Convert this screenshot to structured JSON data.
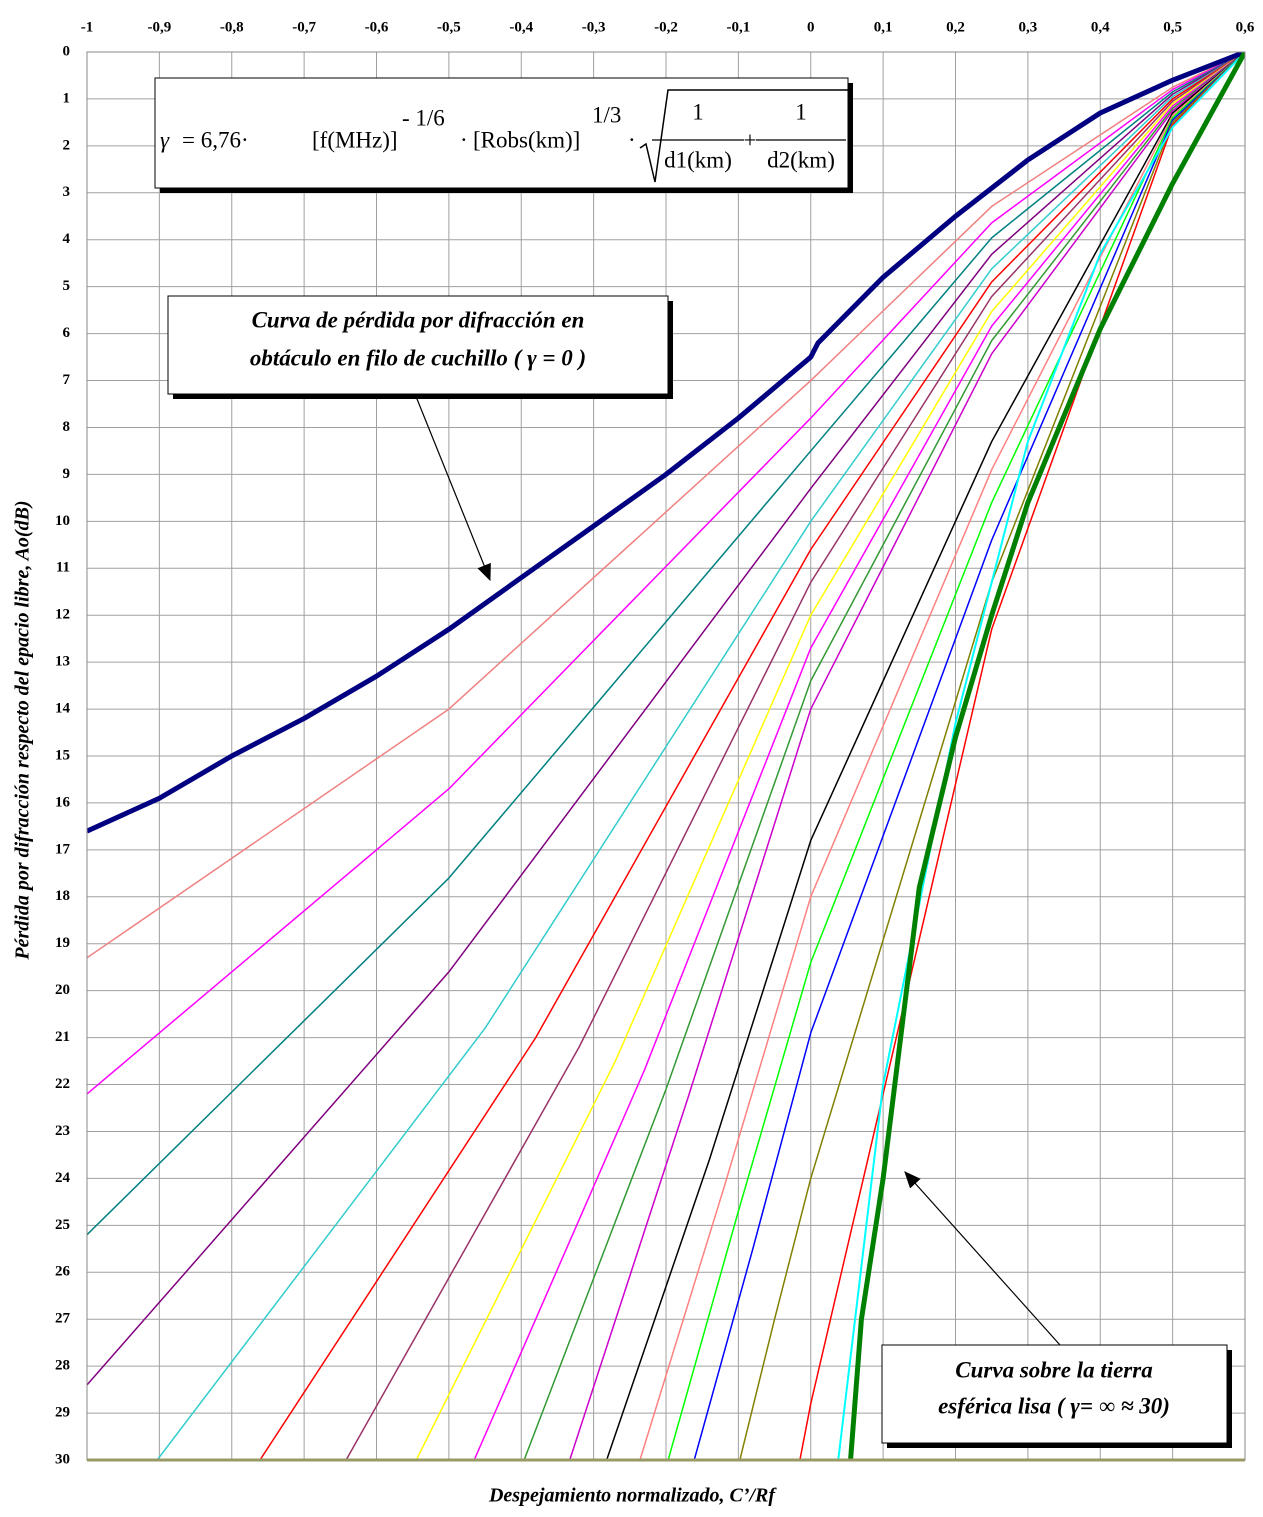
{
  "chart_data": {
    "type": "line",
    "x_label": "Despejamiento normalizado, C’/Rf",
    "y_label": "Pérdida por difracción respecto del epacio libre, Ao(dB)",
    "xlim": [
      -1,
      0.6
    ],
    "ylim": [
      0,
      30
    ],
    "y_reversed": true,
    "grid": true,
    "xticks": [
      -1,
      {
        "value": -0.9,
        "label": "-0,9"
      },
      {
        "value": -0.8,
        "label": "-0,8"
      },
      {
        "value": -0.7,
        "label": "-0,7"
      },
      {
        "value": -0.6,
        "label": "-0,6"
      },
      {
        "value": -0.5,
        "label": "-0,5"
      },
      {
        "value": -0.4,
        "label": "-0,4"
      },
      {
        "value": -0.3,
        "label": "-0,3"
      },
      {
        "value": -0.2,
        "label": "-0,2"
      },
      {
        "value": -0.1,
        "label": "-0,1"
      },
      0,
      {
        "value": 0.1,
        "label": "0,1"
      },
      {
        "value": 0.2,
        "label": "0,2"
      },
      {
        "value": 0.3,
        "label": "0,3"
      },
      {
        "value": 0.4,
        "label": "0,4"
      },
      {
        "value": 0.5,
        "label": "0,5"
      },
      {
        "value": 0.6,
        "label": "0,6"
      }
    ],
    "yticks": [
      0,
      1,
      2,
      3,
      4,
      5,
      6,
      7,
      8,
      9,
      10,
      11,
      12,
      13,
      14,
      15,
      16,
      17,
      18,
      19,
      20,
      21,
      22,
      23,
      24,
      25,
      26,
      27,
      28,
      29,
      30
    ],
    "series": [
      {
        "color": "#f08080",
        "width": 1.5,
        "x": [
          -1,
          -0.5,
          0,
          0.25,
          0.5,
          0.6
        ],
        "values": [
          19.3,
          14.0,
          7.0,
          3.29,
          0.75,
          0
        ]
      },
      {
        "color": "#ff00ff",
        "width": 1.5,
        "x": [
          -1,
          -0.5,
          0,
          0.25,
          0.5,
          0.6
        ],
        "values": [
          22.2,
          15.7,
          7.8,
          3.64,
          0.8,
          0
        ]
      },
      {
        "color": "#008080",
        "width": 1.5,
        "x": [
          -1,
          -0.5,
          0,
          0.25,
          0.5,
          0.6
        ],
        "values": [
          25.2,
          17.6,
          8.5,
          3.96,
          0.85,
          0
        ]
      },
      {
        "color": "#800080",
        "width": 1.5,
        "x": [
          -1,
          -0.5,
          0,
          0.25,
          0.5,
          0.6
        ],
        "values": [
          28.4,
          19.6,
          9.3,
          4.31,
          0.9,
          0
        ]
      },
      {
        "color": "#33cccc",
        "width": 1.5,
        "x": [
          -0.903,
          -0.45,
          0,
          0.25,
          0.5,
          0.6
        ],
        "values": [
          30,
          20.8,
          10.0,
          4.62,
          0.95,
          0
        ]
      },
      {
        "color": "#ff0000",
        "width": 1.5,
        "x": [
          -0.761,
          -0.38,
          0,
          0.25,
          0.5,
          0.6
        ],
        "values": [
          30,
          21.0,
          10.6,
          4.9,
          1.0,
          0
        ]
      },
      {
        "color": "#993366",
        "width": 1.5,
        "x": [
          -0.642,
          -0.32,
          0,
          0.25,
          0.5,
          0.6
        ],
        "values": [
          30,
          21.2,
          11.3,
          5.21,
          1.05,
          0
        ]
      },
      {
        "color": "#ffff00",
        "width": 1.5,
        "x": [
          -0.545,
          -0.27,
          0,
          0.25,
          0.5,
          0.6
        ],
        "values": [
          30,
          21.5,
          12.0,
          5.53,
          1.1,
          0
        ]
      },
      {
        "color": "#ff00ff",
        "width": 1.5,
        "x": [
          -0.465,
          -0.23,
          0,
          0.25,
          0.5,
          0.6
        ],
        "values": [
          30,
          21.7,
          12.7,
          5.84,
          1.15,
          0
        ]
      },
      {
        "color": "#339933",
        "width": 1.5,
        "x": [
          -0.396,
          -0.2,
          0,
          0.25,
          0.5,
          0.6
        ],
        "values": [
          30,
          22.1,
          13.4,
          6.15,
          1.2,
          0
        ]
      },
      {
        "color": "#cc00cc",
        "width": 1.5,
        "x": [
          -0.333,
          -0.17,
          0,
          0.25,
          0.5,
          0.6
        ],
        "values": [
          30,
          22.3,
          14.0,
          6.43,
          1.25,
          0
        ]
      },
      {
        "color": "#000000",
        "width": 1.5,
        "x": [
          -0.282,
          -0.14,
          0,
          0.25,
          0.5,
          0.6
        ],
        "values": [
          30,
          23.6,
          16.8,
          8.3,
          1.3,
          0
        ]
      },
      {
        "color": "#ff8080",
        "width": 1.5,
        "x": [
          -0.236,
          -0.12,
          0,
          0.25,
          0.5,
          0.6
        ],
        "values": [
          30,
          24.2,
          18.0,
          8.9,
          1.35,
          0
        ]
      },
      {
        "color": "#00ff00",
        "width": 1.5,
        "x": [
          -0.197,
          -0.1,
          0,
          0.25,
          0.5,
          0.6
        ],
        "values": [
          30,
          24.7,
          19.4,
          9.6,
          1.4,
          0
        ]
      },
      {
        "color": "#0000ff",
        "width": 1.5,
        "x": [
          -0.161,
          -0.08,
          0,
          0.25,
          0.5,
          0.6
        ],
        "values": [
          30,
          25.5,
          20.9,
          10.4,
          1.45,
          0
        ]
      },
      {
        "color": "#808000",
        "width": 1.5,
        "x": [
          -0.098,
          -0.05,
          0,
          0.25,
          0.5,
          0.6
        ],
        "values": [
          30,
          27.0,
          24.0,
          11.3,
          1.5,
          0
        ]
      },
      {
        "color": "#ff0000",
        "width": 1.5,
        "x": [
          -0.015,
          0,
          0.25,
          0.5,
          0.6
        ],
        "values": [
          30,
          28.8,
          12.3,
          1.55,
          0
        ]
      },
      {
        "color": "#00ffff",
        "width": 2,
        "x": [
          0.038,
          0.1,
          0.2,
          0.3,
          0.4,
          0.5,
          0.6
        ],
        "values": [
          30,
          22,
          14.3,
          8.3,
          4.3,
          1.6,
          0
        ]
      },
      {
        "color": "#000080",
        "width": 5,
        "x": [
          -1,
          -0.9,
          -0.8,
          -0.7,
          -0.6,
          -0.5,
          -0.4,
          -0.3,
          -0.2,
          -0.1,
          0,
          0.01,
          0.1,
          0.2,
          0.3,
          0.4,
          0.5,
          0.6
        ],
        "values": [
          16.6,
          15.9,
          15.0,
          14.2,
          13.3,
          12.3,
          11.2,
          10.1,
          9.0,
          7.8,
          6.5,
          6.2,
          4.8,
          3.5,
          2.3,
          1.3,
          0.6,
          0
        ]
      },
      {
        "color": "#008000",
        "width": 5,
        "x": [
          0.055,
          0.07,
          0.1,
          0.15,
          0.2,
          0.25,
          0.3,
          0.4,
          0.5,
          0.6
        ],
        "values": [
          30,
          27,
          24,
          17.8,
          14.6,
          12,
          9.6,
          5.9,
          2.8,
          0
        ]
      }
    ],
    "annotations": [
      {
        "lines": [
          "Curva de pérdida por difracción en",
          "obtáculo en filo de cuchillo ( γ = 0 )"
        ]
      },
      {
        "lines": [
          "Curva sobre la tierra",
          "esférica lisa ( γ= ∞ ≈ 30)"
        ]
      }
    ],
    "formula": {
      "lhs": "γ",
      "coef": "= 6,76·",
      "f": "[f(MHz)]",
      "exp1": "- 1/6",
      "dot1": "·",
      "r": "[Robs(km)]",
      "exp2": "1/3",
      "dot2": "·",
      "num1": "1",
      "den1": "d1(km)",
      "plus": "+",
      "num2": "1",
      "den2": "d2(km)"
    }
  }
}
